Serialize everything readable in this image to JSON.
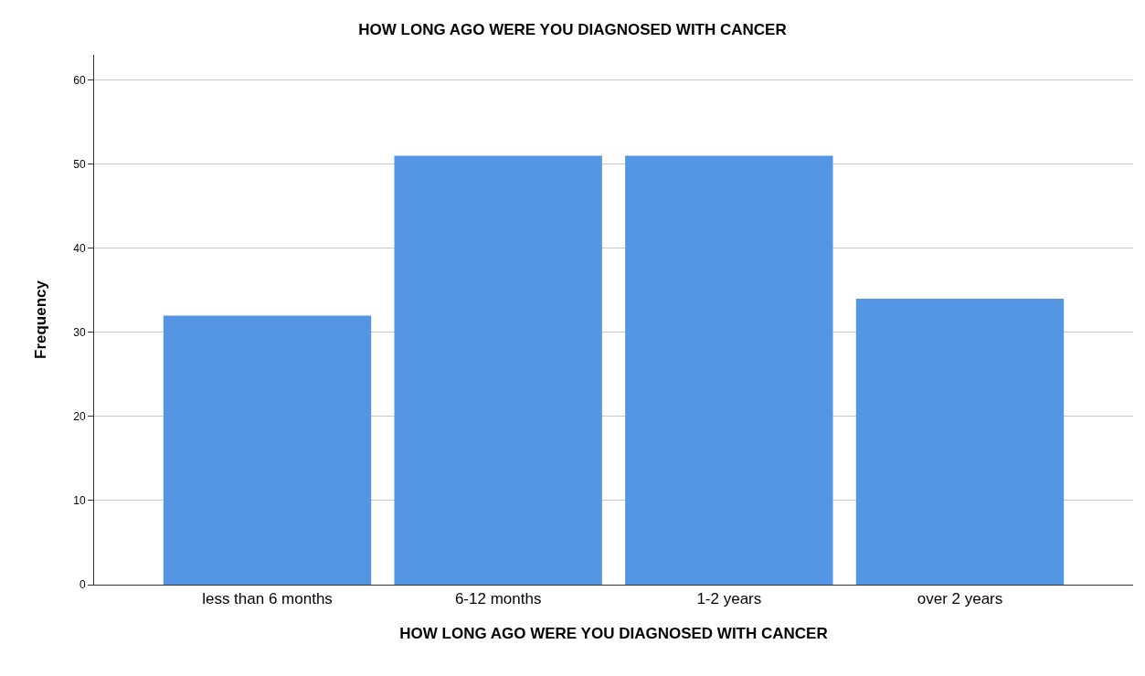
{
  "chart_data": {
    "type": "bar",
    "title": "HOW LONG AGO WERE YOU DIAGNOSED WITH CANCER",
    "xlabel": "HOW LONG AGO WERE YOU DIAGNOSED WITH CANCER",
    "ylabel": "Frequency",
    "categories": [
      "less than 6 months",
      "6-12 months",
      "1-2 years",
      "over 2 years"
    ],
    "values": [
      32,
      51,
      51,
      34
    ],
    "color": "#5596e4",
    "ylim": [
      0,
      63
    ],
    "yticks": [
      0,
      10,
      20,
      30,
      40,
      50,
      60
    ],
    "grid": "y"
  }
}
